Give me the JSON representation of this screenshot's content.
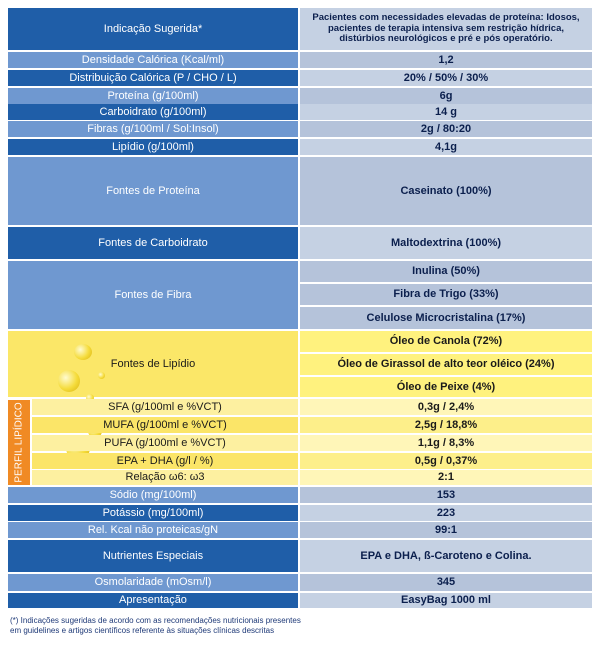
{
  "indicacao": {
    "label": "Indicação Sugerida*",
    "value": "Pacientes com necessidades elevadas de proteína: Idosos, pacientes de terapia intensiva sem restrição hídrica, distúrbios neurológicos  e pré e pós operatório."
  },
  "rows_top": [
    {
      "label": "Densidade Calórica (Kcal/ml)",
      "value": "1,2"
    },
    {
      "label": "Distribuição Calórica (P / CHO / L)",
      "value": "20% / 50% / 30%"
    },
    {
      "label": "Proteína   (g/100ml)",
      "value": "6g"
    },
    {
      "label": "Carboidrato    (g/100ml)",
      "value": "14 g"
    },
    {
      "label": "Fibras (g/100ml / Sol:Insol)",
      "value": "2g / 80:20"
    },
    {
      "label": "Lipídio   (g/100ml)",
      "value": "4,1g"
    }
  ],
  "fontes_proteina": {
    "label": "Fontes de Proteína",
    "value": "Caseinato (100%)"
  },
  "fontes_carboidrato": {
    "label": "Fontes de Carboidrato",
    "value": "Maltodextrina (100%)"
  },
  "fontes_fibra": {
    "label": "Fontes de Fibra",
    "values": [
      "Inulina (50%)",
      "Fibra de Trigo (33%)",
      "Celulose Microcristalina (17%)"
    ]
  },
  "fontes_lipidio": {
    "label": "Fontes de Lipídio",
    "values": [
      "Óleo de Canola (72%)",
      "Óleo de Girassol de alto teor oléico (24%)",
      "Óleo de Peixe (4%)"
    ]
  },
  "perfil_lipidico": {
    "side_label": "PERFIL LIPÍDICO",
    "rows": [
      {
        "label": "SFA (g/100ml e %VCT)",
        "value": "0,3g / 2,4%"
      },
      {
        "label": "MUFA (g/100ml e %VCT)",
        "value": "2,5g / 18,8%"
      },
      {
        "label": "PUFA (g/100ml e %VCT)",
        "value": "1,1g / 8,3%"
      },
      {
        "label": "EPA + DHA (g/l / %)",
        "value": "0,5g / 0,37%"
      },
      {
        "label": "Relação    ω6: ω3",
        "value": "2:1"
      }
    ]
  },
  "rows_bottom": [
    {
      "label": "Sódio (mg/100ml)",
      "value": "153"
    },
    {
      "label": "Potássio (mg/100ml)",
      "value": "223"
    },
    {
      "label": "Rel. Kcal não proteicas/gN",
      "value": "99:1"
    }
  ],
  "nutrientes": {
    "label": "Nutrientes Especiais",
    "value": "EPA e DHA,    ß-Caroteno e Colina."
  },
  "osmolaridade": {
    "label": "Osmolaridade (mOsm/l)",
    "value": "345"
  },
  "apresentacao": {
    "label": "Apresentação",
    "value": "EasyBag 1000 ml"
  },
  "footnote": "(*) Indicações sugeridas de acordo com as recomendações nutricionais presentes em guidelines e artigos científicos referente às situações clínicas descritas",
  "colors": {
    "blue_dark": "#1f5ea8",
    "blue_light": "#6f98d0",
    "value_bg": "#c5d1e3",
    "yellow": "#fbe768",
    "orange": "#f08a24"
  }
}
